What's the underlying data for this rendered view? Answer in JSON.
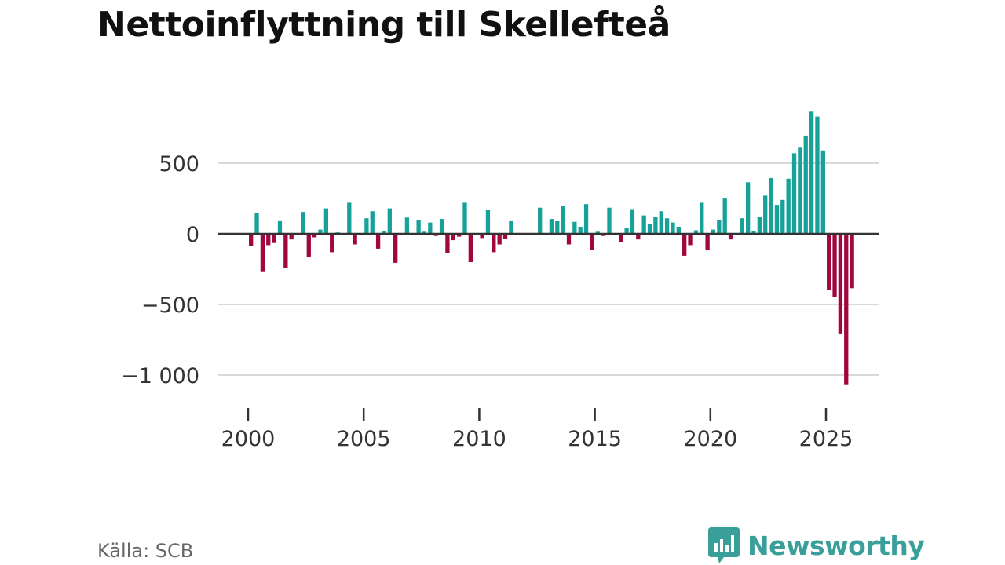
{
  "header": {
    "title": "Nettoinflyttning till Skellefteå"
  },
  "footer": {
    "source": "Källa: SCB",
    "brand": "Newsworthy"
  },
  "chart_data": {
    "type": "bar",
    "title": "Nettoinflyttning till Skellefteå",
    "xlabel": "",
    "ylabel": "",
    "ylim": [
      -1100,
      900
    ],
    "y_ticks": [
      500,
      0,
      -500,
      -1000
    ],
    "y_tick_labels": [
      "500",
      "0",
      "−500",
      "−1 000"
    ],
    "x_ticks": [
      2000,
      2005,
      2010,
      2015,
      2020,
      2025
    ],
    "x_tick_labels": [
      "2000",
      "2005",
      "2010",
      "2015",
      "2020",
      "2025"
    ],
    "grid": true,
    "frequency": "quarterly",
    "start": "2000-Q1",
    "colors": {
      "positive": "#16a299",
      "negative": "#a2063f",
      "grid": "#d9d9d9",
      "baseline": "#333333"
    },
    "values": [
      -85,
      150,
      -265,
      -80,
      -65,
      95,
      -240,
      -40,
      0,
      155,
      -165,
      -25,
      30,
      180,
      -130,
      10,
      0,
      220,
      -75,
      0,
      110,
      160,
      -105,
      20,
      180,
      -205,
      0,
      115,
      0,
      100,
      15,
      80,
      -15,
      105,
      -135,
      -45,
      -20,
      220,
      -200,
      0,
      -30,
      170,
      -130,
      -75,
      -35,
      95,
      0,
      0,
      0,
      0,
      185,
      0,
      105,
      90,
      195,
      -75,
      85,
      50,
      210,
      -115,
      15,
      -15,
      185,
      0,
      -60,
      40,
      175,
      -40,
      130,
      70,
      120,
      160,
      110,
      80,
      50,
      -155,
      -80,
      25,
      220,
      -115,
      30,
      100,
      255,
      -40,
      0,
      110,
      365,
      20,
      120,
      270,
      395,
      205,
      240,
      390,
      570,
      615,
      695,
      865,
      830,
      590,
      -395,
      -450,
      -705,
      -1065,
      -385
    ]
  }
}
